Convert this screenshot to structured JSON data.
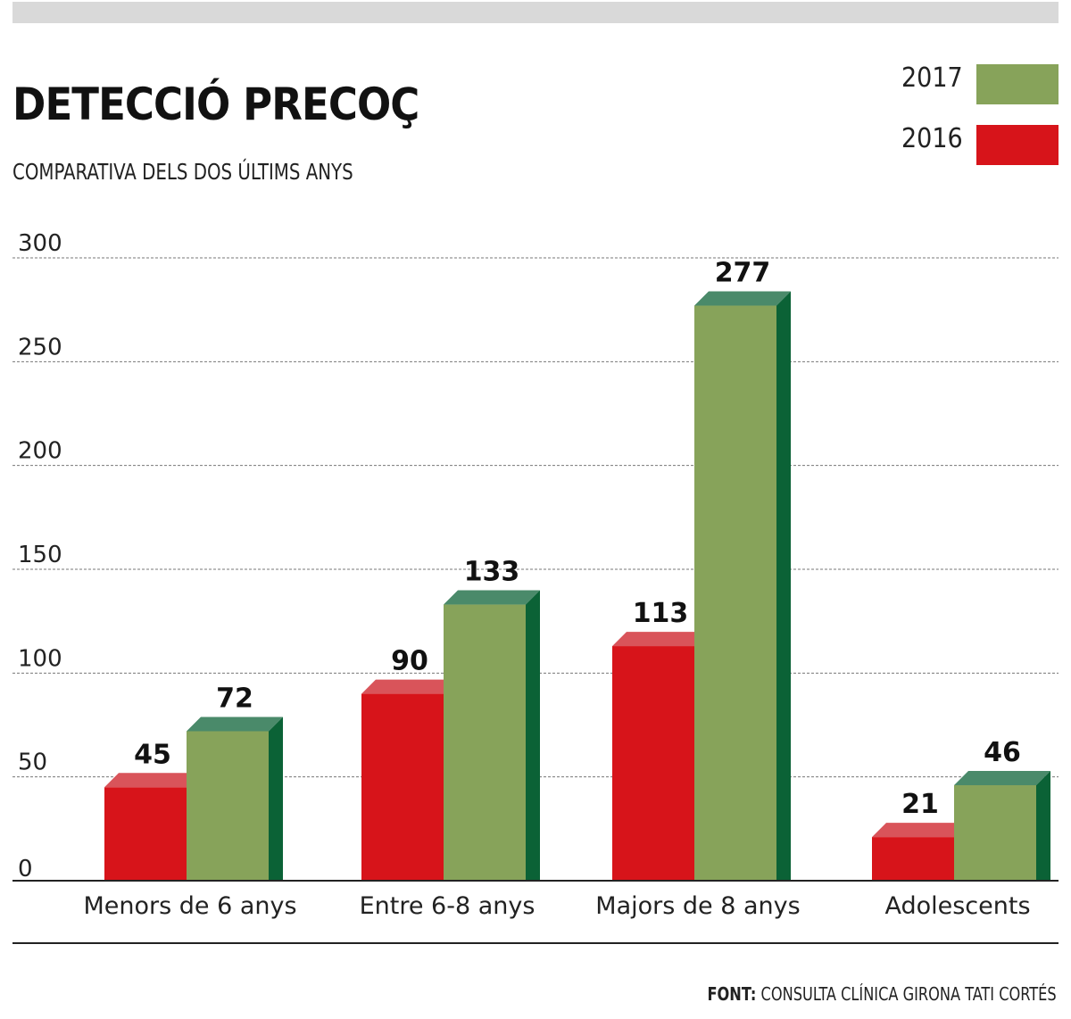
{
  "title": "DETECCIÓ PRECOÇ",
  "subtitle": "COMPARATIVA DELS DOS ÚLTIMS ANYS",
  "source_label": "FONT:",
  "source_text": "CONSULTA CLÍNICA GIRONA TATI CORTÉS",
  "chart_data": {
    "type": "bar",
    "categories": [
      "Menors de 6 anys",
      "Entre 6-8 anys",
      "Majors de 8 anys",
      "Adolescents"
    ],
    "series": [
      {
        "name": "2016",
        "values": [
          45,
          90,
          113,
          21
        ],
        "color": "#d7141a"
      },
      {
        "name": "2017",
        "values": [
          72,
          133,
          277,
          46
        ],
        "color": "#87a35a"
      }
    ],
    "yticks": [
      0,
      50,
      100,
      150,
      200,
      250,
      300
    ],
    "ylim": [
      0,
      300
    ],
    "grid": true,
    "legend": "top-right",
    "data_labels": true
  }
}
